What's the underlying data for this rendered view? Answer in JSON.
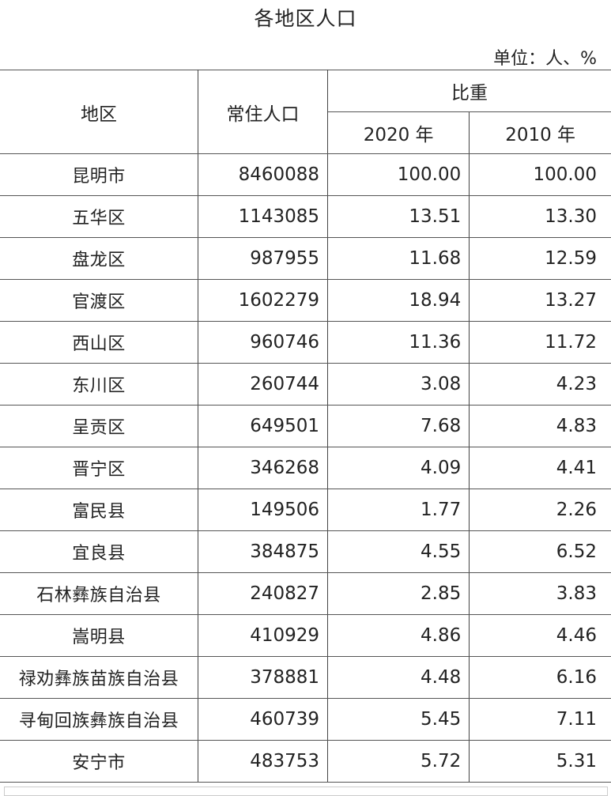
{
  "title": "各地区人口",
  "unit": "单位：人、%",
  "headers": {
    "region": "地区",
    "population": "常住人口",
    "share": "比重",
    "year2020": "2020 年",
    "year2010": "2010 年"
  },
  "rows": [
    {
      "region": "昆明市",
      "population": "8460088",
      "share2020": "100.00",
      "share2010": "100.00"
    },
    {
      "region": "五华区",
      "population": "1143085",
      "share2020": "13.51",
      "share2010": "13.30"
    },
    {
      "region": "盘龙区",
      "population": "987955",
      "share2020": "11.68",
      "share2010": "12.59"
    },
    {
      "region": "官渡区",
      "population": "1602279",
      "share2020": "18.94",
      "share2010": "13.27"
    },
    {
      "region": "西山区",
      "population": "960746",
      "share2020": "11.36",
      "share2010": "11.72"
    },
    {
      "region": "东川区",
      "population": "260744",
      "share2020": "3.08",
      "share2010": "4.23"
    },
    {
      "region": "呈贡区",
      "population": "649501",
      "share2020": "7.68",
      "share2010": "4.83"
    },
    {
      "region": "晋宁区",
      "population": "346268",
      "share2020": "4.09",
      "share2010": "4.41"
    },
    {
      "region": "富民县",
      "population": "149506",
      "share2020": "1.77",
      "share2010": "2.26"
    },
    {
      "region": "宜良县",
      "population": "384875",
      "share2020": "4.55",
      "share2010": "6.52"
    },
    {
      "region": "石林彝族自治县",
      "population": "240827",
      "share2020": "2.85",
      "share2010": "3.83"
    },
    {
      "region": "嵩明县",
      "population": "410929",
      "share2020": "4.86",
      "share2010": "4.46"
    },
    {
      "region": "禄劝彝族苗族自治县",
      "population": "378881",
      "share2020": "4.48",
      "share2010": "6.16"
    },
    {
      "region": "寻甸回族彝族自治县",
      "population": "460739",
      "share2020": "5.45",
      "share2010": "7.11"
    },
    {
      "region": "安宁市",
      "population": "483753",
      "share2020": "5.72",
      "share2010": "5.31"
    }
  ]
}
